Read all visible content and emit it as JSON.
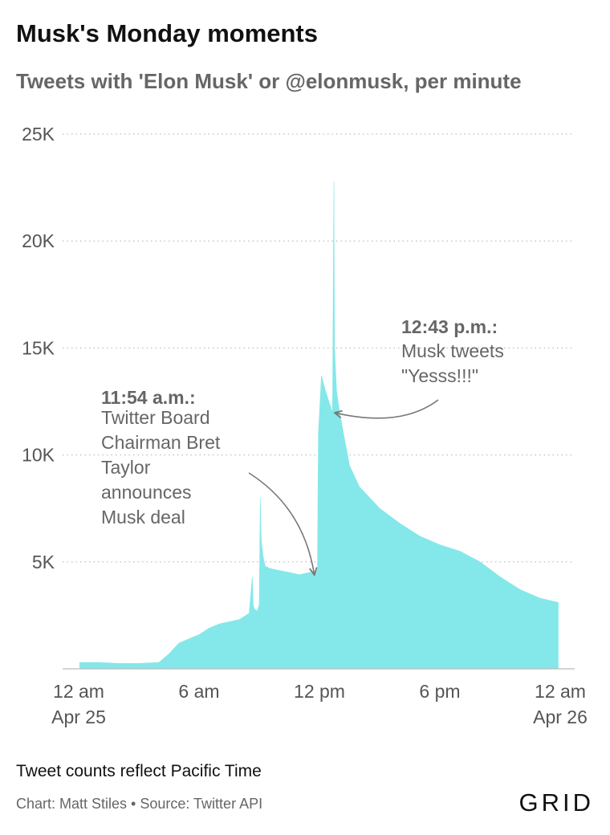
{
  "page": {
    "title": "Musk's Monday moments",
    "subtitle": "Tweets with 'Elon Musk' or @elonmusk, per minute",
    "note": "Tweet counts reflect Pacific Time",
    "credit": "Chart: Matt Stiles • Source: Twitter API",
    "logo": "GRID"
  },
  "colors": {
    "fill": "#84e8ea",
    "grid": "#c8c8c8",
    "arrow": "#777777"
  },
  "chart_data": {
    "type": "area",
    "title": "Musk's Monday moments",
    "subtitle": "Tweets with 'Elon Musk' or @elonmusk, per minute",
    "xlabel": "",
    "ylabel": "",
    "x_unit": "hours after 12 am Apr 25 (Pacific Time)",
    "xlim": [
      0,
      24
    ],
    "ylim": [
      0,
      25000
    ],
    "grid": true,
    "legend": "none",
    "y_ticks": [
      {
        "value": 5000,
        "label": "5K"
      },
      {
        "value": 10000,
        "label": "10K"
      },
      {
        "value": 15000,
        "label": "15K"
      },
      {
        "value": 20000,
        "label": "20K"
      },
      {
        "value": 25000,
        "label": "25K"
      }
    ],
    "x_ticks": [
      {
        "value": 0,
        "line1": "12 am",
        "line2": "Apr 25"
      },
      {
        "value": 6,
        "line1": "6 am",
        "line2": ""
      },
      {
        "value": 12,
        "line1": "12 pm",
        "line2": ""
      },
      {
        "value": 18,
        "line1": "6 pm",
        "line2": ""
      },
      {
        "value": 24,
        "line1": "12 am",
        "line2": "Apr 26"
      }
    ],
    "x": [
      0.05,
      0.5,
      1,
      2,
      3,
      4,
      4.5,
      5,
      5.5,
      6,
      6.5,
      7,
      7.5,
      8,
      8.5,
      8.65,
      8.7,
      8.75,
      8.9,
      9.0,
      9.05,
      9.1,
      9.2,
      9.3,
      9.5,
      10,
      10.5,
      11,
      11.5,
      11.9,
      11.95,
      12.1,
      12.3,
      12.5,
      12.65,
      12.72,
      12.75,
      12.85,
      13,
      13.5,
      14,
      15,
      16,
      17,
      18,
      19,
      20,
      21,
      22,
      23,
      23.9
    ],
    "series": [
      {
        "values": [
          300,
          300,
          300,
          250,
          250,
          300,
          700,
          1200,
          1400,
          1600,
          1900,
          2100,
          2200,
          2300,
          2600,
          4300,
          3000,
          2800,
          2700,
          3000,
          8000,
          6000,
          5200,
          4800,
          4700,
          4600,
          4500,
          4400,
          4500,
          4600,
          11000,
          13700,
          13000,
          12400,
          12000,
          22800,
          15000,
          13000,
          12000,
          9500,
          8500,
          7500,
          6800,
          6200,
          5800,
          5500,
          5000,
          4300,
          3700,
          3300,
          3100
        ]
      }
    ],
    "annotations": [
      {
        "id": "board",
        "time": "11:54 a.m.:",
        "lines": [
          "Twitter Board",
          "Chairman Bret",
          "Taylor",
          "announces",
          "Musk deal"
        ],
        "x": 11.9,
        "y": 4500
      },
      {
        "id": "tweet",
        "time": "12:43 p.m.:",
        "lines": [
          "Musk tweets",
          "\"Yesss!!!\""
        ],
        "x": 12.72,
        "y": 12000
      }
    ]
  }
}
